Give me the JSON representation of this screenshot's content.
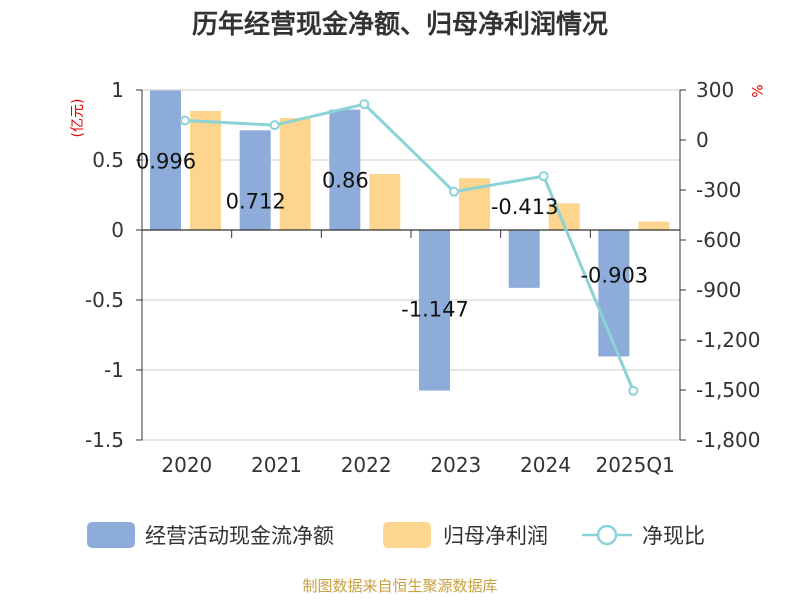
{
  "chart_data": {
    "type": "bar",
    "title": "历年经营现金净额、归母净利润情况",
    "categories": [
      "2020",
      "2021",
      "2022",
      "2023",
      "2024",
      "2025Q1"
    ],
    "left_axis": {
      "unit": "(亿元)",
      "ylim": [
        -1.5,
        1
      ],
      "ticks": [
        1,
        0.5,
        0,
        -0.5,
        -1,
        -1.5
      ],
      "tick_labels": [
        "1",
        "0.5",
        "0",
        "-0.5",
        "-1",
        "-1.5"
      ]
    },
    "right_axis": {
      "unit": "%",
      "ylim": [
        -1800,
        300
      ],
      "ticks": [
        300,
        0,
        -300,
        -600,
        -900,
        -1200,
        -1500,
        -1800
      ],
      "tick_labels": [
        "300",
        "0",
        "-300",
        "-600",
        "-900",
        "-1,200",
        "-1,500",
        "-1,800"
      ]
    },
    "series": [
      {
        "name": "经营活动现金流净额",
        "type": "bar",
        "axis": "left",
        "color": "#8eacd9",
        "values": [
          0.996,
          0.712,
          0.86,
          -1.147,
          -0.413,
          -0.903
        ],
        "labels": [
          "0.996",
          "0.712",
          "0.86",
          "-1.147",
          "-0.413",
          "-0.903"
        ]
      },
      {
        "name": "归母净利润",
        "type": "bar",
        "axis": "left",
        "color": "#fdd58e",
        "values": [
          0.85,
          0.8,
          0.4,
          0.37,
          0.19,
          0.06
        ]
      },
      {
        "name": "净现比",
        "type": "line",
        "axis": "right",
        "color": "#8bd3d6",
        "values": [
          117,
          89,
          215,
          -310,
          -217,
          -1505
        ]
      }
    ]
  },
  "source": "制图数据来自恒生聚源数据库"
}
